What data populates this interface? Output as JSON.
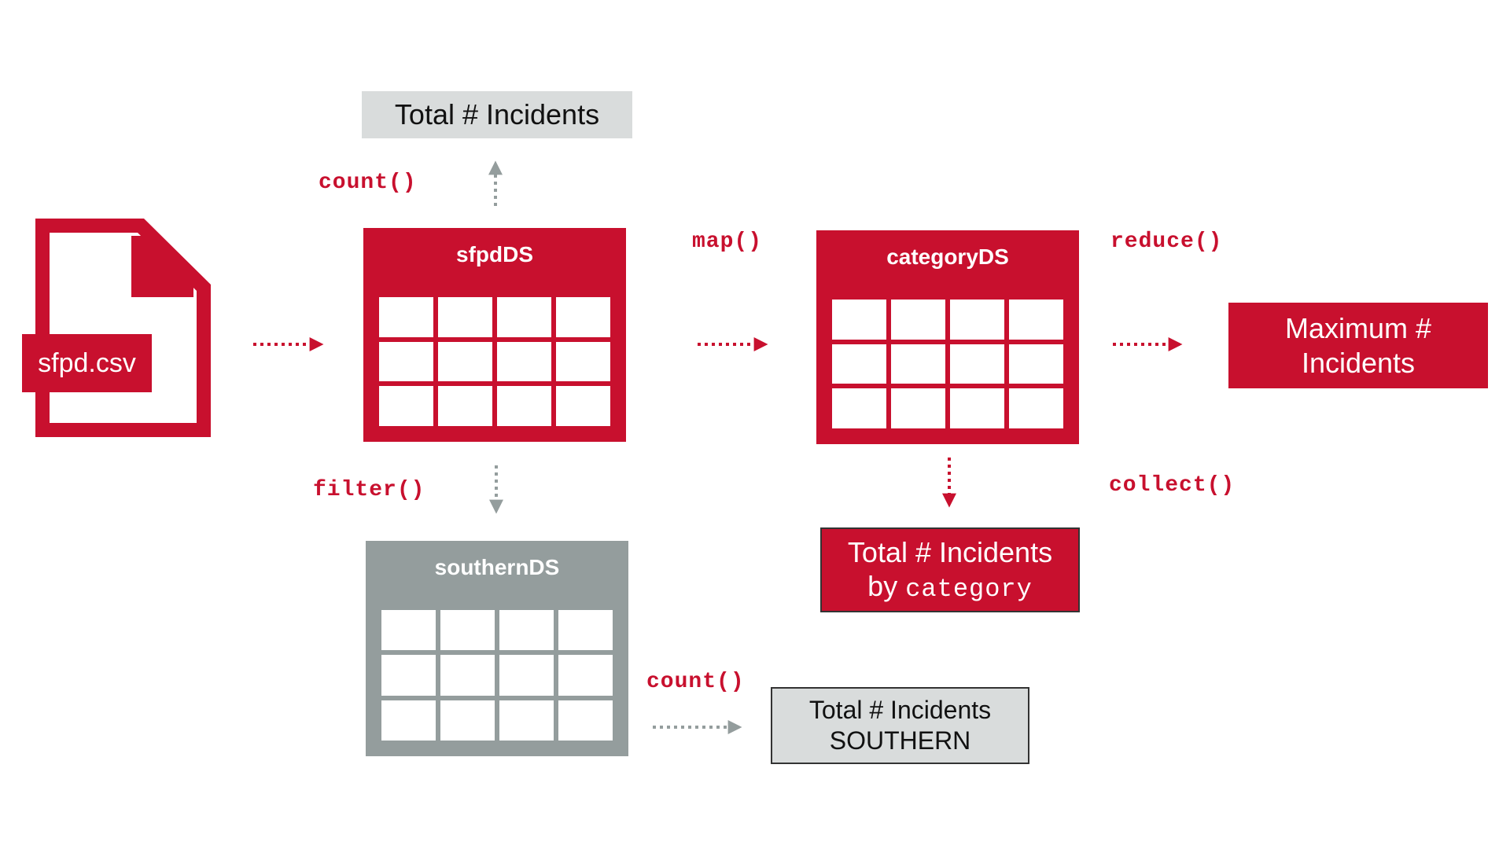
{
  "colors": {
    "red": "#c8102e",
    "gray": "#949d9d",
    "light_gray": "#d9dcdc",
    "dark_border": "#333333"
  },
  "file": {
    "label": "sfpd.csv",
    "icon": "csv-file-icon"
  },
  "datasets": {
    "sfpd": {
      "title": "sfpdDS"
    },
    "category": {
      "title": "categoryDS"
    },
    "southern": {
      "title": "southernDS"
    }
  },
  "operations": {
    "count_top": "count()",
    "map": "map()",
    "reduce": "reduce()",
    "filter": "filter()",
    "collect": "collect()",
    "count_bottom": "count()"
  },
  "results": {
    "total_incidents": "Total # Incidents",
    "max_incidents_line1": "Maximum #",
    "max_incidents_line2": "Incidents",
    "by_category_line1": "Total # Incidents",
    "by_category_prefix": "by ",
    "by_category_field": "category",
    "southern_line1": "Total # Incidents",
    "southern_line2": "SOUTHERN"
  }
}
